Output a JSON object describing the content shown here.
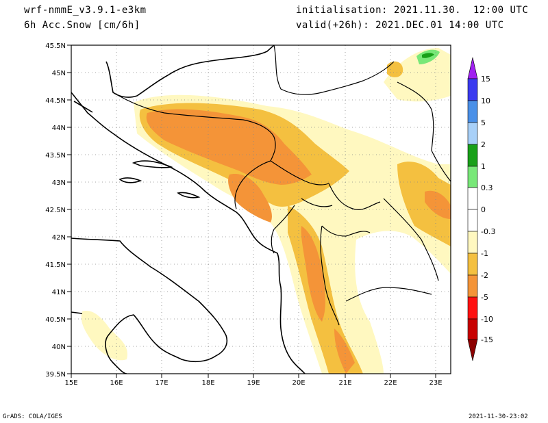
{
  "header": {
    "model": "wrf-nmmE_v3.9.1-e3km",
    "field": "6h Acc.Snow [cm/6h]",
    "init": "initialisation: 2021.11.30.  12:00 UTC",
    "valid": "valid(+26h): 2021.DEC.01 14:00 UTC"
  },
  "footer": {
    "left": "GrADS: COLA/IGES",
    "right": "2021-11-30-23:02"
  },
  "map": {
    "lat_labels": [
      "45.5N",
      "45N",
      "44.5N",
      "44N",
      "43.5N",
      "43N",
      "42.5N",
      "42N",
      "41.5N",
      "41N",
      "40.5N",
      "40N",
      "39.5N"
    ],
    "lon_labels": [
      "15E",
      "16E",
      "17E",
      "18E",
      "19E",
      "20E",
      "21E",
      "22E",
      "23E"
    ]
  },
  "legend": {
    "levels": [
      "15",
      "10",
      "5",
      "2",
      "1",
      "0.3",
      "0",
      "-0.3",
      "-1",
      "-2",
      "-5",
      "-10",
      "-15"
    ],
    "colors": {
      "top_arrow": "#a020f0",
      "c1": "#3a3af0",
      "c2": "#4a90e8",
      "c3": "#a8d0f8",
      "c4": "#18a018",
      "c5": "#78e878",
      "c6": "#ffffff",
      "c7": "#ffffff",
      "c8": "#fff8c0",
      "c9": "#f4c040",
      "c10": "#f49438",
      "c11": "#ff1010",
      "c12": "#c80000",
      "bottom_arrow": "#8c0000"
    }
  }
}
